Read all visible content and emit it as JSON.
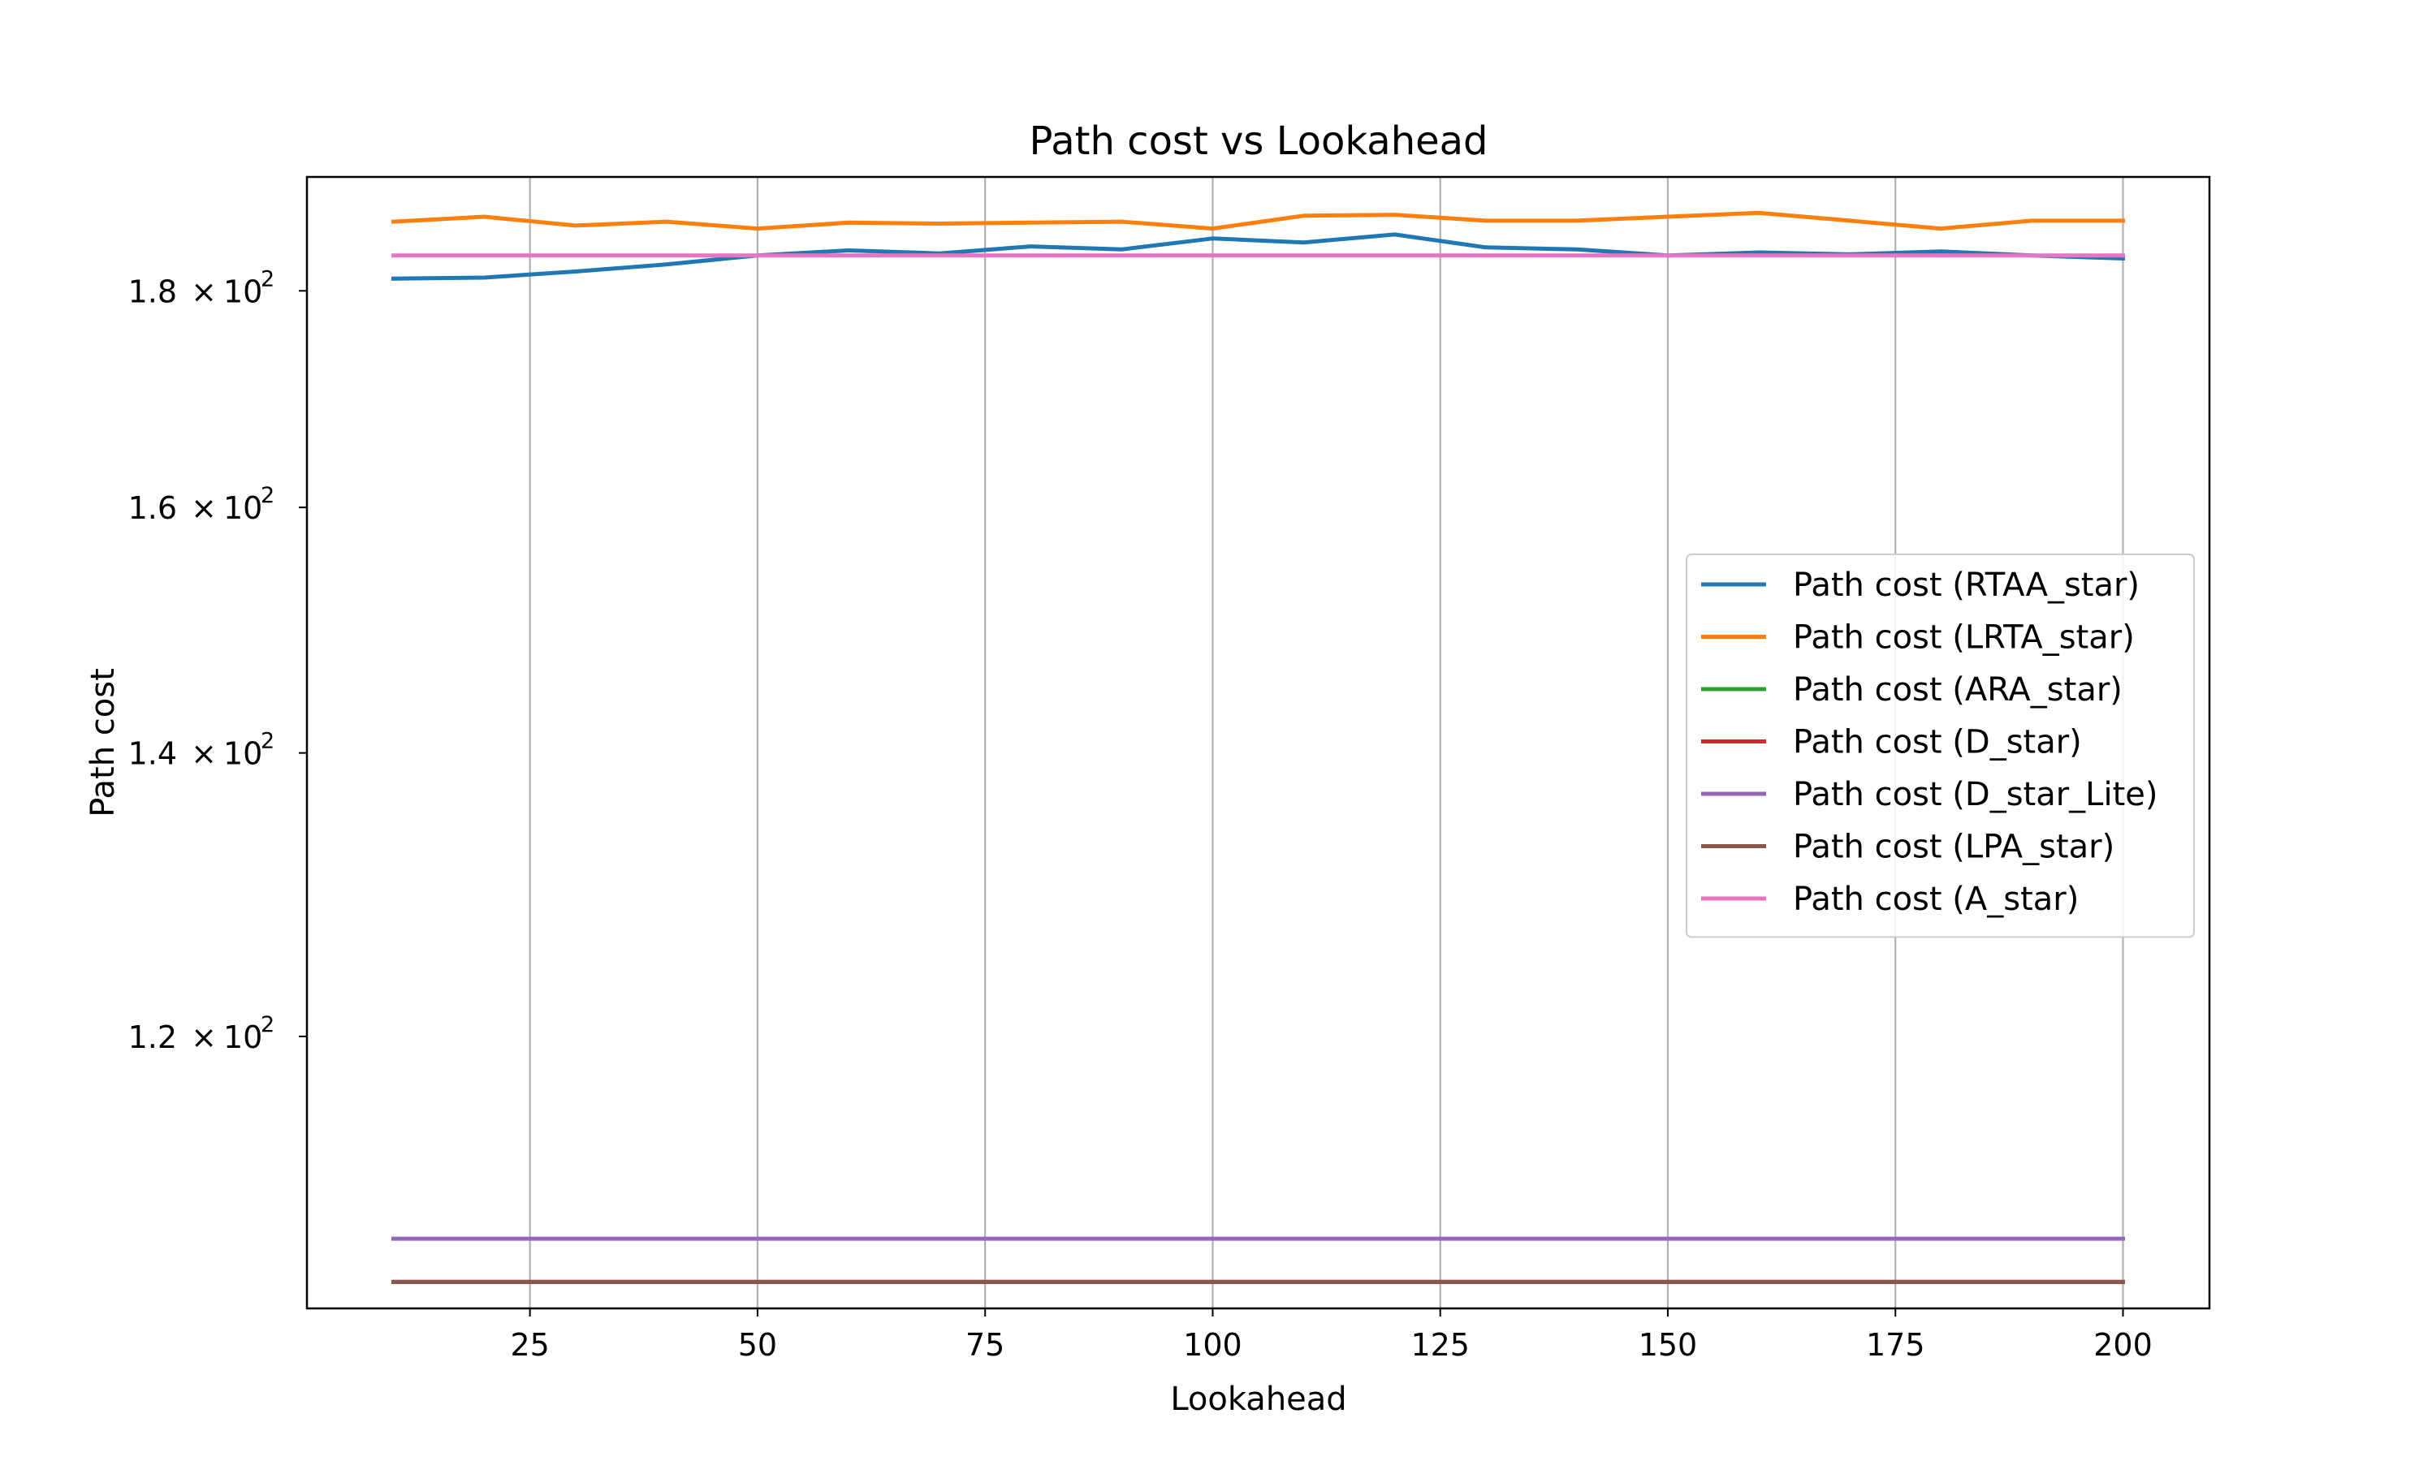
{
  "chart_data": {
    "type": "line",
    "title": "Path cost vs Lookahead",
    "xlabel": "Lookahead",
    "ylabel": "Path cost",
    "xlim": [
      0.5,
      209.5
    ],
    "ylim": [
      103.5,
      191.5
    ],
    "yscale": "log",
    "grid": "x-only",
    "legend_placement": "center-right",
    "x_ticks": [
      {
        "value": 25,
        "label": "25"
      },
      {
        "value": 50,
        "label": "50"
      },
      {
        "value": 75,
        "label": "75"
      },
      {
        "value": 100,
        "label": "100"
      },
      {
        "value": 125,
        "label": "125"
      },
      {
        "value": 150,
        "label": "150"
      },
      {
        "value": 175,
        "label": "175"
      },
      {
        "value": 200,
        "label": "200"
      }
    ],
    "y_ticks": [
      {
        "value": 120,
        "mantissa": "1.2",
        "base": "10",
        "exp": "2"
      },
      {
        "value": 140,
        "mantissa": "1.4",
        "base": "10",
        "exp": "2"
      },
      {
        "value": 160,
        "mantissa": "1.6",
        "base": "10",
        "exp": "2"
      },
      {
        "value": 180,
        "mantissa": "1.8",
        "base": "10",
        "exp": "2"
      }
    ],
    "x": [
      10,
      20,
      30,
      40,
      50,
      60,
      70,
      80,
      90,
      100,
      110,
      120,
      130,
      140,
      150,
      160,
      170,
      180,
      190,
      200
    ],
    "series": [
      {
        "name": "Path cost (RTAA_star)",
        "color": "#1f77b4",
        "values": [
          181.2,
          181.3,
          181.9,
          182.6,
          183.5,
          184.0,
          183.7,
          184.4,
          184.1,
          185.2,
          184.8,
          185.6,
          184.3,
          184.1,
          183.5,
          183.8,
          183.6,
          183.9,
          183.5,
          183.2
        ]
      },
      {
        "name": "Path cost (LRTA_star)",
        "color": "#ff7f0e",
        "values": [
          186.9,
          187.4,
          186.5,
          186.9,
          186.2,
          186.8,
          186.7,
          186.8,
          186.9,
          186.2,
          187.5,
          187.6,
          187.0,
          187.0,
          187.4,
          187.8,
          187.0,
          186.2,
          187.0,
          187.0
        ]
      },
      {
        "name": "Path cost (ARA_star)",
        "color": "#2ca02c",
        "values": [
          105.0,
          105.0,
          105.0,
          105.0,
          105.0,
          105.0,
          105.0,
          105.0,
          105.0,
          105.0,
          105.0,
          105.0,
          105.0,
          105.0,
          105.0,
          105.0,
          105.0,
          105.0,
          105.0,
          105.0
        ]
      },
      {
        "name": "Path cost (D_star)",
        "color": "#d62728",
        "values": [
          105.0,
          105.0,
          105.0,
          105.0,
          105.0,
          105.0,
          105.0,
          105.0,
          105.0,
          105.0,
          105.0,
          105.0,
          105.0,
          105.0,
          105.0,
          105.0,
          105.0,
          105.0,
          105.0,
          105.0
        ]
      },
      {
        "name": "Path cost (D_star_Lite)",
        "color": "#9467bd",
        "values": [
          107.5,
          107.5,
          107.5,
          107.5,
          107.5,
          107.5,
          107.5,
          107.5,
          107.5,
          107.5,
          107.5,
          107.5,
          107.5,
          107.5,
          107.5,
          107.5,
          107.5,
          107.5,
          107.5,
          107.5
        ]
      },
      {
        "name": "Path cost (LPA_star)",
        "color": "#8c564b",
        "values": [
          105.0,
          105.0,
          105.0,
          105.0,
          105.0,
          105.0,
          105.0,
          105.0,
          105.0,
          105.0,
          105.0,
          105.0,
          105.0,
          105.0,
          105.0,
          105.0,
          105.0,
          105.0,
          105.0,
          105.0
        ]
      },
      {
        "name": "Path cost (A_star)",
        "color": "#e377c2",
        "values": [
          183.5,
          183.5,
          183.5,
          183.5,
          183.5,
          183.5,
          183.5,
          183.5,
          183.5,
          183.5,
          183.5,
          183.5,
          183.5,
          183.5,
          183.5,
          183.5,
          183.5,
          183.5,
          183.5,
          183.5
        ]
      }
    ]
  }
}
